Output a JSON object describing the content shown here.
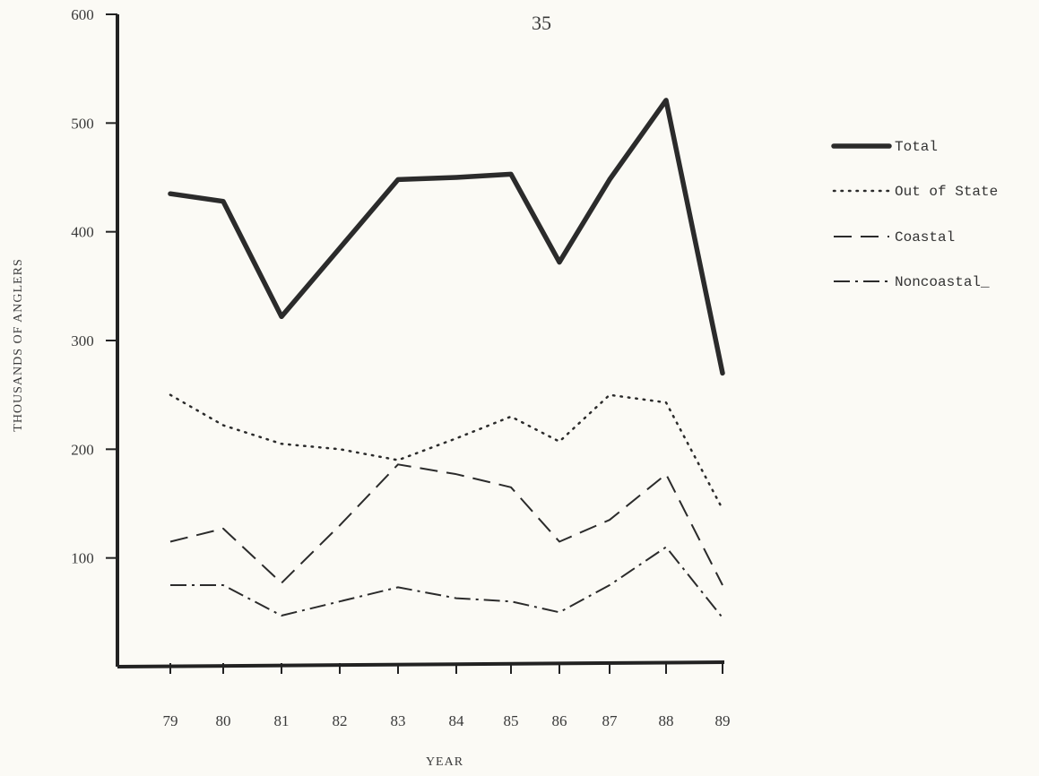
{
  "page_number": "35",
  "chart_data": {
    "type": "line",
    "xlabel": "YEAR",
    "ylabel": "THOUSANDS OF ANGLERS",
    "categories": [
      "79",
      "80",
      "81",
      "82",
      "83",
      "84",
      "85",
      "86",
      "87",
      "88",
      "89"
    ],
    "y_ticks": [
      "600",
      "500",
      "400",
      "300",
      "200",
      "100"
    ],
    "ylim": [
      0,
      600
    ],
    "grid": false,
    "legend_position": "right",
    "series": [
      {
        "name": "Total",
        "style": "solid-thick",
        "values": [
          435,
          428,
          322,
          385,
          448,
          450,
          453,
          372,
          448,
          521,
          270
        ]
      },
      {
        "name": "Out of State",
        "style": "dotted",
        "values": [
          250,
          222,
          205,
          200,
          190,
          210,
          230,
          207,
          250,
          243,
          145
        ]
      },
      {
        "name": "Coastal",
        "style": "dashed",
        "values": [
          115,
          127,
          77,
          130,
          186,
          177,
          165,
          115,
          135,
          177,
          75
        ]
      },
      {
        "name": "Noncoastal_",
        "style": "dash-dot",
        "values": [
          75,
          75,
          47,
          60,
          73,
          63,
          60,
          50,
          75,
          110,
          45
        ]
      }
    ]
  }
}
